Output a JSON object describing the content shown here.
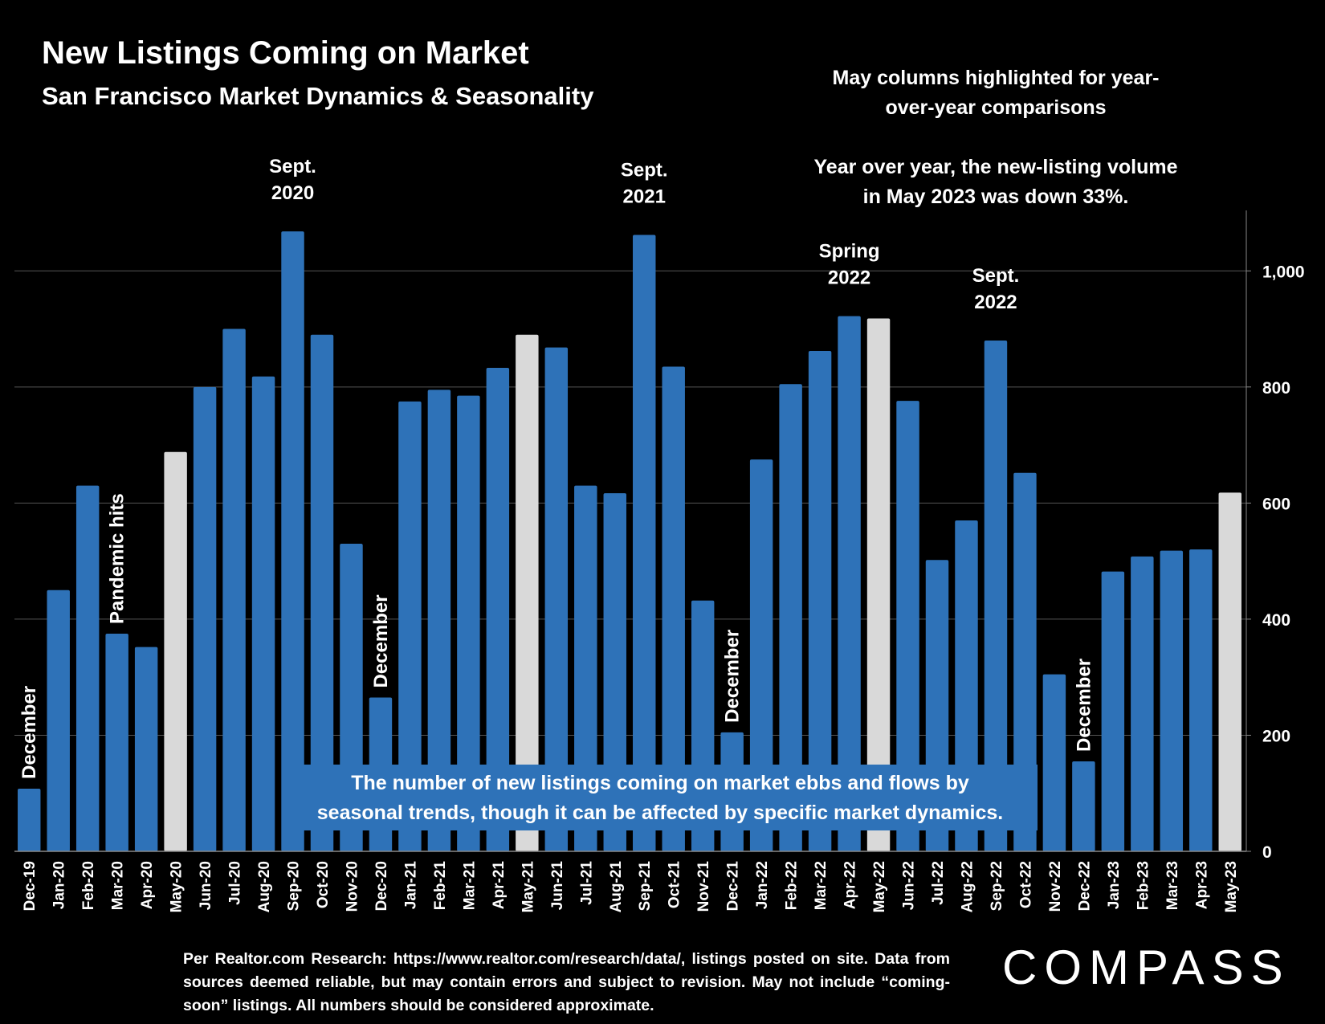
{
  "header": {
    "title": "New Listings Coming on Market",
    "subtitle": "San Francisco Market Dynamics & Seasonality"
  },
  "notes": {
    "may_line1": "May columns highlighted for year-",
    "may_line2": "over-year comparisons",
    "yoy_line1": "Year over year, the new-listing volume",
    "yoy_line2": "in May 2023 was down 33%."
  },
  "callout": {
    "line1": "The number of new listings coming on market ebbs and flows by",
    "line2": "seasonal trends, though it can be affected by specific market dynamics."
  },
  "footer": {
    "text": "Per Realtor.com Research: https://www.realtor.com/research/data/, listings posted on site. Data from sources deemed reliable, but may contain errors and subject to revision. May not include “coming-soon” listings. All numbers should be considered approximate."
  },
  "logo": {
    "text": "COMPASS"
  },
  "colors": {
    "bar": "#2e72b8",
    "highlight": "#d9d9d9",
    "grid": "#555555"
  },
  "chart_data": {
    "type": "bar",
    "categories": [
      "Dec-19",
      "Jan-20",
      "Feb-20",
      "Mar-20",
      "Apr-20",
      "May-20",
      "Jun-20",
      "Jul-20",
      "Aug-20",
      "Sep-20",
      "Oct-20",
      "Nov-20",
      "Dec-20",
      "Jan-21",
      "Feb-21",
      "Mar-21",
      "Apr-21",
      "May-21",
      "Jun-21",
      "Jul-21",
      "Aug-21",
      "Sep-21",
      "Oct-21",
      "Nov-21",
      "Dec-21",
      "Jan-22",
      "Feb-22",
      "Mar-22",
      "Apr-22",
      "May-22",
      "Jun-22",
      "Jul-22",
      "Aug-22",
      "Sep-22",
      "Oct-22",
      "Nov-22",
      "Dec-22",
      "Jan-23",
      "Feb-23",
      "Mar-23",
      "Apr-23",
      "May-23"
    ],
    "values": [
      108,
      450,
      630,
      375,
      352,
      688,
      800,
      900,
      818,
      1068,
      890,
      530,
      265,
      775,
      795,
      785,
      833,
      890,
      868,
      630,
      617,
      1062,
      835,
      432,
      205,
      675,
      805,
      862,
      922,
      918,
      776,
      502,
      570,
      880,
      652,
      305,
      155,
      482,
      508,
      518,
      520,
      618
    ],
    "highlighted": [
      "May-20",
      "May-21",
      "May-22",
      "May-23"
    ],
    "ylim": [
      0,
      1100
    ],
    "yticks": [
      "0",
      "200",
      "400",
      "600",
      "800",
      "1,000"
    ],
    "ytick_values": [
      0,
      200,
      400,
      600,
      800,
      1000
    ],
    "y_axis_side": "right",
    "grid": true,
    "annotations": [
      {
        "at": "Dec-19",
        "lines": [
          "December"
        ],
        "rotated": true
      },
      {
        "at": "Mar-20",
        "lines": [
          "Pandemic hits"
        ],
        "rotated": true
      },
      {
        "at": "Sep-20",
        "lines": [
          "Sept.",
          "2020"
        ],
        "rotated": false
      },
      {
        "at": "Dec-20",
        "lines": [
          "December"
        ],
        "rotated": true
      },
      {
        "at": "Sep-21",
        "lines": [
          "Sept.",
          "2021"
        ],
        "rotated": false
      },
      {
        "at": "Dec-21",
        "lines": [
          "December"
        ],
        "rotated": true
      },
      {
        "at": "Apr-22",
        "lines": [
          "Spring",
          "2022"
        ],
        "rotated": false
      },
      {
        "at": "Sep-22",
        "lines": [
          "Sept.",
          "2022"
        ],
        "rotated": false
      },
      {
        "at": "Dec-22",
        "lines": [
          "December"
        ],
        "rotated": true
      }
    ]
  }
}
